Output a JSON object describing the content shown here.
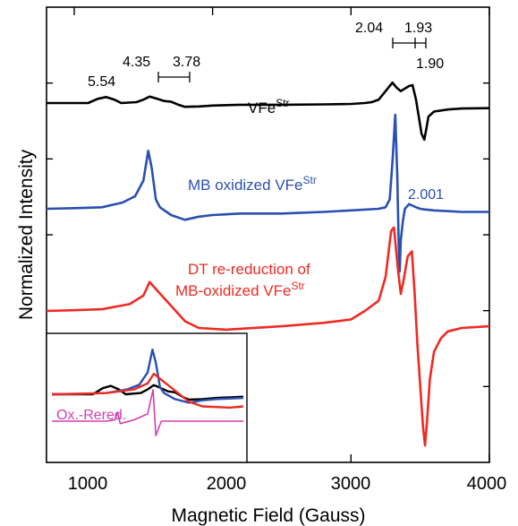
{
  "chart_data": {
    "type": "line",
    "xlabel": "Magnetic Field (Gauss)",
    "ylabel": "Normalized Intensity",
    "xlim": [
      800,
      4000
    ],
    "x_ticks": [
      1000,
      2000,
      3000,
      4000
    ],
    "x_tick_labels": [
      "1000",
      "2000",
      "3000",
      "4000"
    ],
    "y_ticks_count": 5,
    "grid": false,
    "legend": "none",
    "series": [
      {
        "name": "VFe^Str",
        "color": "#000000",
        "x": [
          800,
          1100,
          1170,
          1230,
          1290,
          1340,
          1450,
          1500,
          1545,
          1600,
          1650,
          1700,
          1760,
          1800,
          1900,
          2000,
          2200,
          2500,
          2800,
          3000,
          3100,
          3150,
          3200,
          3250,
          3280,
          3300,
          3330,
          3360,
          3390,
          3420,
          3445,
          3470,
          3490,
          3510,
          3530,
          3545,
          3560,
          3600,
          3700,
          3800,
          4000
        ],
        "y": [
          0.0,
          0.0,
          0.25,
          0.35,
          0.2,
          0.0,
          0.05,
          0.2,
          0.38,
          0.25,
          0.12,
          0.08,
          -0.12,
          -0.22,
          -0.2,
          -0.15,
          -0.1,
          -0.1,
          -0.08,
          -0.05,
          0.0,
          0.05,
          0.2,
          0.7,
          1.0,
          1.2,
          0.9,
          0.7,
          0.85,
          1.0,
          1.05,
          0.2,
          -0.8,
          -1.8,
          -2.15,
          -1.5,
          -0.8,
          -0.5,
          -0.38,
          -0.32,
          -0.3
        ]
      },
      {
        "name": "MB oxidized VFe^Str",
        "color": "#2a4fb0",
        "x": [
          800,
          1000,
          1200,
          1350,
          1440,
          1500,
          1535,
          1560,
          1590,
          1620,
          1700,
          1800,
          1900,
          2000,
          2200,
          2500,
          2800,
          3000,
          3200,
          3250,
          3280,
          3300,
          3320,
          3335,
          3345,
          3352,
          3360,
          3375,
          3390,
          3420,
          3445,
          3470,
          3500,
          3530,
          3600,
          3800,
          4000
        ],
        "y": [
          0.0,
          0.02,
          0.05,
          0.2,
          0.4,
          0.9,
          1.85,
          1.3,
          0.3,
          0.05,
          -0.2,
          -0.35,
          -0.25,
          -0.2,
          -0.15,
          -0.15,
          -0.1,
          -0.05,
          0.0,
          0.05,
          0.3,
          1.5,
          3.0,
          1.0,
          -1.2,
          -2.0,
          -1.0,
          -0.4,
          0.0,
          0.15,
          0.1,
          0.05,
          0.0,
          -0.02,
          -0.05,
          -0.1,
          -0.1
        ]
      },
      {
        "name": "DT re-reduction of MB-oxidized VFe^Str",
        "color": "#ee2a24",
        "x": [
          800,
          1000,
          1200,
          1400,
          1500,
          1545,
          1600,
          1700,
          1800,
          1900,
          2100,
          2500,
          2800,
          3000,
          3100,
          3200,
          3250,
          3290,
          3310,
          3340,
          3360,
          3380,
          3410,
          3440,
          3460,
          3480,
          3500,
          3520,
          3535,
          3550,
          3570,
          3600,
          3650,
          3700,
          3800,
          4000
        ],
        "y": [
          0.0,
          0.02,
          0.05,
          0.2,
          0.45,
          0.85,
          0.6,
          0.15,
          -0.3,
          -0.5,
          -0.55,
          -0.45,
          -0.35,
          -0.25,
          0.0,
          0.3,
          1.0,
          2.35,
          2.45,
          1.2,
          0.5,
          0.9,
          1.6,
          1.75,
          0.5,
          -1.0,
          -2.2,
          -3.4,
          -3.95,
          -3.2,
          -2.0,
          -1.2,
          -0.8,
          -0.6,
          -0.5,
          -0.45
        ]
      }
    ],
    "annotations": {
      "g_low": [
        "5.54",
        "4.35",
        "3.78"
      ],
      "g_high": [
        "2.04",
        "1.93",
        "1.90"
      ],
      "g_ox": "2.001",
      "label_black_base": "VFe",
      "label_black_sup": "Str",
      "label_blue_base": "MB oxidized VFe",
      "label_blue_sup": "Str",
      "label_red_line1": "DT re-reduction of",
      "label_red_line2_base": "MB-oxidized VFe",
      "label_red_line2_sup": "Str"
    },
    "inset": {
      "xlim": [
        800,
        2200
      ],
      "label": "Ox.-Rered.",
      "series": [
        {
          "name": "VFe^Str",
          "color": "#000000",
          "x": [
            800,
            1100,
            1170,
            1230,
            1290,
            1340,
            1450,
            1500,
            1545,
            1600,
            1650,
            1700,
            1760,
            1800,
            1900,
            2000,
            2200
          ],
          "y": [
            0.0,
            0.0,
            0.25,
            0.35,
            0.2,
            0.0,
            0.05,
            0.2,
            0.38,
            0.25,
            0.12,
            0.08,
            -0.12,
            -0.22,
            -0.2,
            -0.15,
            -0.1
          ]
        },
        {
          "name": "MB oxidized VFe^Str",
          "color": "#2a4fb0",
          "x": [
            800,
            1000,
            1200,
            1350,
            1440,
            1500,
            1535,
            1560,
            1590,
            1620,
            1700,
            1800,
            1900,
            2000,
            2200
          ],
          "y": [
            0.0,
            0.02,
            0.05,
            0.2,
            0.4,
            0.9,
            1.85,
            1.3,
            0.3,
            0.05,
            -0.2,
            -0.35,
            -0.25,
            -0.2,
            -0.15
          ]
        },
        {
          "name": "DT re-reduction of MB-oxidized VFe^Str",
          "color": "#ee2a24",
          "x": [
            800,
            1000,
            1200,
            1400,
            1500,
            1545,
            1600,
            1700,
            1800,
            1900,
            2100,
            2200
          ],
          "y": [
            0.0,
            0.02,
            0.05,
            0.2,
            0.45,
            0.85,
            0.6,
            0.15,
            -0.3,
            -0.5,
            -0.55,
            -0.5
          ]
        },
        {
          "name": "Ox.-Rered.",
          "color": "#d040b0",
          "x": [
            800,
            1000,
            1200,
            1260,
            1280,
            1300,
            1400,
            1500,
            1540,
            1560,
            1580,
            1600,
            1700,
            1900,
            2200
          ],
          "y": [
            0.0,
            0.0,
            0.0,
            0.05,
            0.35,
            -0.1,
            0.05,
            0.3,
            1.3,
            -0.6,
            -0.3,
            0.0,
            0.0,
            0.0,
            0.0
          ]
        }
      ]
    }
  }
}
